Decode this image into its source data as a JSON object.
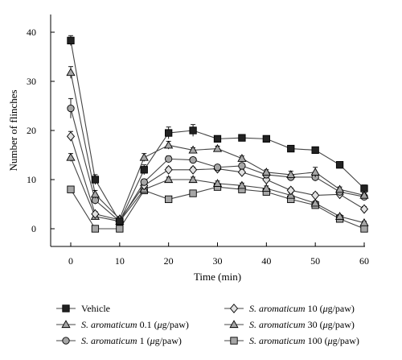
{
  "chart_data": {
    "type": "line",
    "xlabel": "Time (min)",
    "ylabel": "Number of flinches",
    "xlim": [
      0,
      60
    ],
    "ylim": [
      0,
      40
    ],
    "xticks": [
      0,
      10,
      20,
      30,
      40,
      50,
      60
    ],
    "yticks": [
      0,
      10,
      20,
      30,
      40
    ],
    "x": [
      0,
      5,
      10,
      15,
      20,
      25,
      30,
      35,
      40,
      45,
      50,
      55,
      60
    ],
    "grid": false,
    "legend_position": "bottom",
    "series": [
      {
        "name": "Vehicle",
        "species": "",
        "dose": "",
        "marker": "square",
        "fill": "#222222",
        "values": [
          38.3,
          10,
          1.5,
          12,
          19.5,
          20,
          18.3,
          18.5,
          18.3,
          16.3,
          16,
          13,
          8.2
        ],
        "errors": [
          1.0,
          1.0,
          0.5,
          1.0,
          1.2,
          1.2,
          0.5,
          0.5,
          0.5,
          0.5,
          0.5,
          0.5,
          0.7
        ]
      },
      {
        "name": "S. aromaticum 0.1 (μg/paw)",
        "species": "S. aromaticum",
        "dose": "0.1 (μg/paw)",
        "marker": "triangle",
        "fill": "#a6a6a6",
        "values": [
          31.8,
          7.0,
          2.0,
          14.5,
          17.0,
          16.0,
          16.3,
          14.3,
          11.5,
          11.0,
          11.5,
          8.0,
          6.8
        ],
        "errors": [
          1.2,
          0.8,
          0.5,
          0.8,
          0.8,
          0.5,
          0.5,
          0.5,
          0.5,
          0.7,
          1.0,
          0.5,
          0.5
        ]
      },
      {
        "name": "S. aromaticum 1 (μg/paw)",
        "species": "S. aromaticum",
        "dose": "1 (μg/paw)",
        "marker": "circle",
        "fill": "#a6a6a6",
        "values": [
          24.5,
          5.8,
          1.5,
          9.5,
          14.2,
          14.0,
          12.5,
          12.8,
          11.0,
          10.5,
          10.5,
          7.5,
          6.5
        ],
        "errors": [
          2.0,
          0.8,
          0.5,
          0.6,
          0.6,
          0.5,
          0.5,
          0.5,
          0.5,
          0.5,
          0.8,
          0.5,
          0.5
        ]
      },
      {
        "name": "S. aromaticum 10 (μg/paw)",
        "species": "S. aromaticum",
        "dose": "10 (μg/paw)",
        "marker": "diamond",
        "fill": "#e0e0e0",
        "values": [
          18.8,
          3.0,
          1.8,
          8.8,
          12.0,
          12.0,
          12.2,
          11.5,
          10.0,
          7.8,
          6.8,
          7.0,
          4.0
        ],
        "errors": [
          1.0,
          0.5,
          0.4,
          0.5,
          0.5,
          0.5,
          0.5,
          0.5,
          0.5,
          0.5,
          0.5,
          0.5,
          0.5
        ]
      },
      {
        "name": "S. aromaticum 30 (μg/paw)",
        "species": "S. aromaticum",
        "dose": "30 (μg/paw)",
        "marker": "triangle",
        "fill": "#a6a6a6",
        "values": [
          14.5,
          2.5,
          1.5,
          8.0,
          10.0,
          10.0,
          9.2,
          8.8,
          8.2,
          6.8,
          5.2,
          2.5,
          1.2
        ],
        "errors": [
          0.8,
          0.4,
          0.3,
          0.5,
          0.5,
          0.5,
          0.5,
          0.5,
          0.5,
          0.5,
          0.5,
          0.4,
          0.3
        ]
      },
      {
        "name": "S. aromaticum 100 (μg/paw)",
        "species": "S. aromaticum",
        "dose": "100 (μg/paw)",
        "marker": "square",
        "fill": "#a6a6a6",
        "values": [
          8.0,
          0.0,
          0.0,
          7.8,
          6.0,
          7.2,
          8.5,
          8.0,
          7.5,
          6.0,
          4.8,
          2.0,
          0.0
        ],
        "errors": [
          0.5,
          0.3,
          0.3,
          0.5,
          0.5,
          0.5,
          0.5,
          0.5,
          0.7,
          0.5,
          0.5,
          0.3,
          0.3
        ]
      }
    ]
  }
}
